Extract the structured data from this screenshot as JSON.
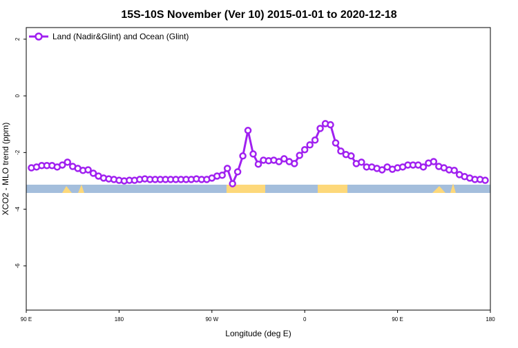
{
  "chart_data": {
    "type": "line",
    "title": "15S-10S November (Ver 10)   2015-01-01 to 2020-12-18",
    "x_label": "Longitude (deg E)",
    "y_label": "XCO2 - MLO trend (ppm)",
    "xlim": [
      90,
      540
    ],
    "xticks": [
      {
        "value": 90,
        "label": "90 E"
      },
      180,
      {
        "value": 270,
        "label": "90 W"
      },
      {
        "value": 360,
        "label": "0"
      },
      {
        "value": 450,
        "label": "90 E"
      },
      {
        "value": 540,
        "label": "180"
      }
    ],
    "ylim": [
      -7.56,
      2.41
    ],
    "yticks": [
      2,
      0,
      -2,
      -4,
      -6
    ],
    "legend_position": "top-left",
    "x": [
      95,
      100,
      105,
      110,
      115,
      120,
      125,
      130,
      135,
      140,
      145,
      150,
      155,
      160,
      165,
      170,
      175,
      180,
      185,
      190,
      195,
      200,
      205,
      210,
      215,
      220,
      225,
      230,
      235,
      240,
      245,
      250,
      255,
      260,
      265,
      270,
      275,
      280,
      285,
      290,
      295,
      300,
      305,
      310,
      315,
      320,
      325,
      330,
      335,
      340,
      345,
      350,
      355,
      360,
      365,
      370,
      375,
      380,
      385,
      390,
      395,
      400,
      405,
      410,
      415,
      420,
      425,
      430,
      435,
      440,
      445,
      450,
      455,
      460,
      465,
      470,
      475,
      480,
      485,
      490,
      495,
      500,
      505,
      510,
      515,
      520,
      525,
      530,
      535
    ],
    "series": [
      {
        "name": "Land (Nadir&Glint) and Ocean (Glint)",
        "color": "#a020f0",
        "values": [
          -2.54,
          -2.51,
          -2.46,
          -2.46,
          -2.46,
          -2.51,
          -2.44,
          -2.34,
          -2.49,
          -2.56,
          -2.63,
          -2.61,
          -2.73,
          -2.83,
          -2.9,
          -2.93,
          -2.95,
          -2.98,
          -3.0,
          -2.98,
          -2.98,
          -2.95,
          -2.93,
          -2.95,
          -2.95,
          -2.95,
          -2.95,
          -2.95,
          -2.95,
          -2.95,
          -2.95,
          -2.95,
          -2.93,
          -2.95,
          -2.95,
          -2.9,
          -2.83,
          -2.8,
          -2.56,
          -3.1,
          -2.68,
          -2.12,
          -1.22,
          -2.05,
          -2.41,
          -2.27,
          -2.29,
          -2.27,
          -2.32,
          -2.22,
          -2.32,
          -2.39,
          -2.1,
          -1.9,
          -1.73,
          -1.56,
          -1.15,
          -0.98,
          -1.02,
          -1.66,
          -1.95,
          -2.07,
          -2.12,
          -2.39,
          -2.34,
          -2.51,
          -2.51,
          -2.56,
          -2.61,
          -2.51,
          -2.59,
          -2.54,
          -2.51,
          -2.44,
          -2.44,
          -2.44,
          -2.51,
          -2.37,
          -2.32,
          -2.49,
          -2.54,
          -2.61,
          -2.63,
          -2.78,
          -2.85,
          -2.9,
          -2.95,
          -2.95,
          -2.98
        ]
      }
    ]
  }
}
